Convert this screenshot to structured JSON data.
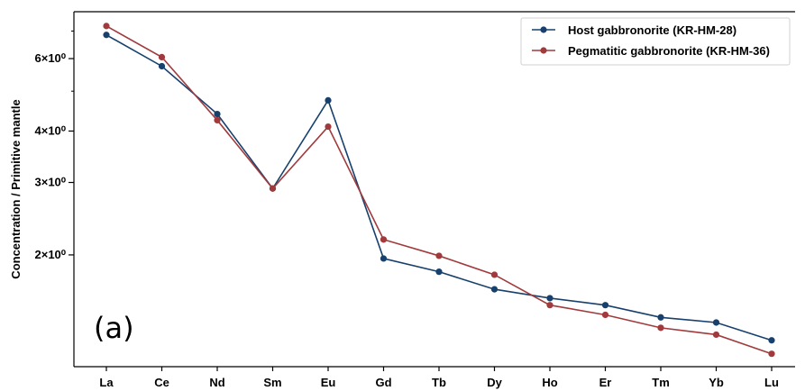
{
  "chart_data": {
    "type": "line",
    "panel_label": "(a)",
    "ylabel": "Concentration / Primitive mantle",
    "yscale": "log",
    "ylim": [
      1.07,
      7.8
    ],
    "y_ticks": [
      {
        "value": 2,
        "label": "2×10⁰"
      },
      {
        "value": 3,
        "label": "3×10⁰"
      },
      {
        "value": 4,
        "label": "4×10⁰"
      },
      {
        "value": 6,
        "label": "6×10⁰"
      }
    ],
    "categories": [
      "La",
      "Ce",
      "Nd",
      "Sm",
      "Eu",
      "Gd",
      "Tb",
      "Dy",
      "Ho",
      "Er",
      "Tm",
      "Yb",
      "Lu"
    ],
    "series": [
      {
        "name": "Host gabbronorite (KR-HM-28)",
        "color": "#17406d",
        "values": [
          6.85,
          5.75,
          4.4,
          2.9,
          4.75,
          1.96,
          1.82,
          1.65,
          1.57,
          1.51,
          1.41,
          1.37,
          1.24
        ]
      },
      {
        "name": "Pegmatitic gabbronorite (KR-HM-36)",
        "color": "#a13a3c",
        "values": [
          7.2,
          6.05,
          4.25,
          2.9,
          4.1,
          2.18,
          1.99,
          1.79,
          1.51,
          1.43,
          1.33,
          1.28,
          1.15
        ]
      }
    ],
    "legend_position": "top-right",
    "grid": false
  }
}
